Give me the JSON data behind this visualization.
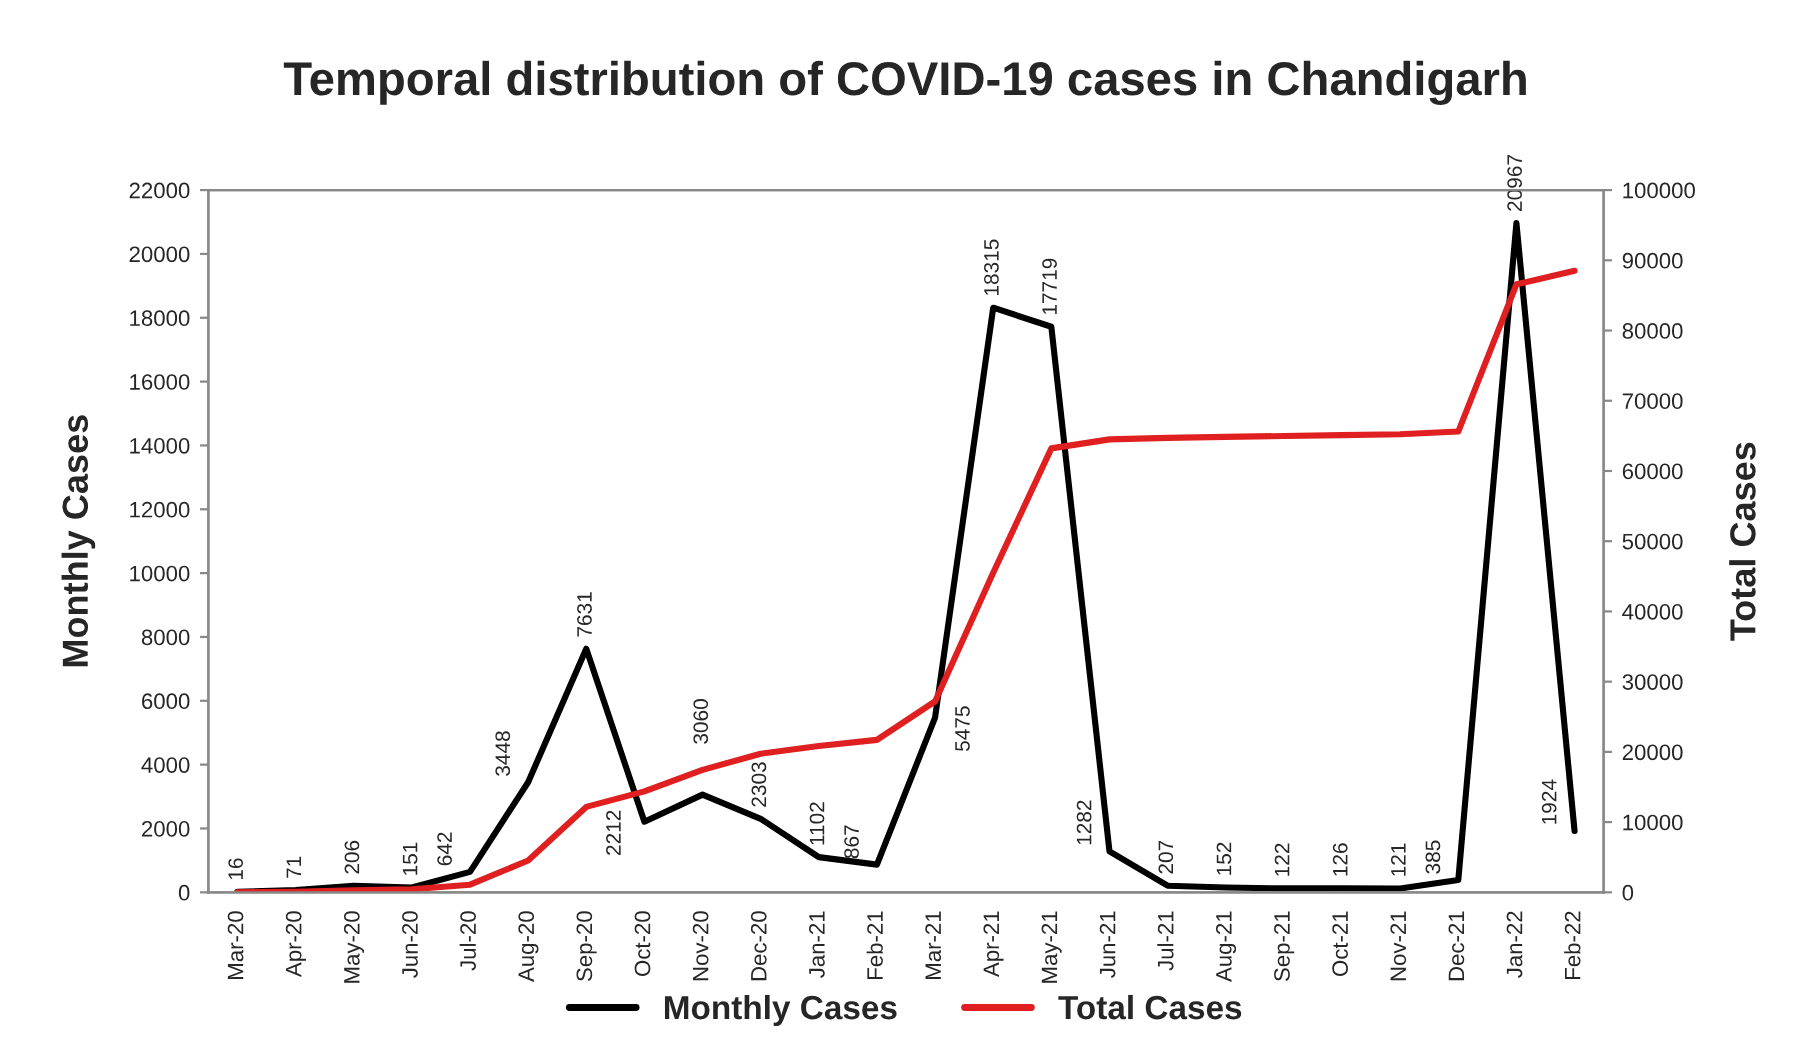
{
  "chart_data": {
    "type": "line",
    "title": "Temporal distribution of COVID-19 cases in Chandigarh",
    "ylabel": "Monthly Cases",
    "y2label": "Total Cases",
    "categories": [
      "Mar-20",
      "Apr-20",
      "May-20",
      "Jun-20",
      "Jul-20",
      "Aug-20",
      "Sep-20",
      "Oct-20",
      "Nov-20",
      "Dec-20",
      "Jan-21",
      "Feb-21",
      "Mar-21",
      "Apr-21",
      "May-21",
      "Jun-21",
      "Jul-21",
      "Aug-21",
      "Sep-21",
      "Oct-21",
      "Nov-21",
      "Dec-21",
      "Jan-22",
      "Feb-22"
    ],
    "series": [
      {
        "name": "Monthly Cases",
        "color": "#000000",
        "values": [
          16,
          71,
          206,
          151,
          642,
          3448,
          7631,
          2212,
          3060,
          2303,
          1102,
          867,
          5475,
          18315,
          17719,
          1282,
          207,
          152,
          122,
          126,
          121,
          385,
          20967,
          1924
        ],
        "value_labels": [
          "16",
          "71",
          "206",
          "151",
          "642",
          "3448",
          "7631",
          "2212",
          "3060",
          "2303",
          "1102",
          "867",
          "5475",
          "18315",
          "17719",
          "1282",
          "207",
          "152",
          "122",
          "126",
          "121",
          "385",
          "20967",
          "1924"
        ]
      },
      {
        "name": "Total Cases",
        "color": "#e02020",
        "axis": "y2",
        "values": [
          16,
          87,
          293,
          444,
          1086,
          4534,
          12165,
          14377,
          17437,
          19740,
          20842,
          21709,
          27184,
          45499,
          63218,
          64500,
          64707,
          64859,
          64981,
          65107,
          65228,
          65613,
          86580,
          88504
        ]
      }
    ],
    "ylim": [
      0,
      22000
    ],
    "yticks": [
      0,
      2000,
      4000,
      6000,
      8000,
      10000,
      12000,
      14000,
      16000,
      18000,
      20000,
      22000
    ],
    "y2lim": [
      0,
      100000
    ],
    "y2ticks": [
      0,
      10000,
      20000,
      30000,
      40000,
      50000,
      60000,
      70000,
      80000,
      90000,
      100000
    ],
    "grid": false,
    "legend": "bottom",
    "marker": "none",
    "line_style": "solid"
  }
}
